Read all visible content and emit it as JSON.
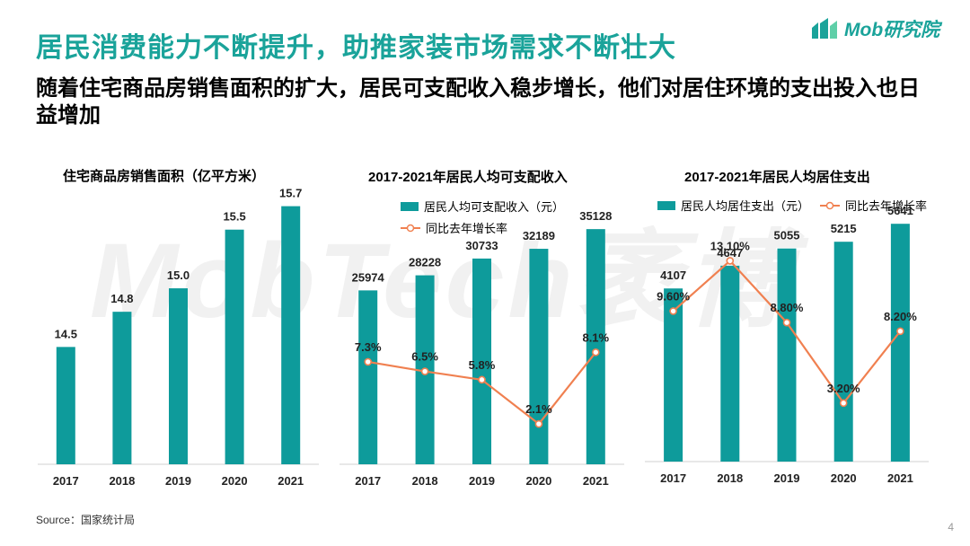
{
  "header": {
    "title": "居民消费能力不断提升，助推家装市场需求不断壮大",
    "subtitle": "随着住宅商品房销售面积的扩大，居民可支配收入稳步增长，他们对居住环境的支出投入也日益增加"
  },
  "logo": {
    "text": "Mob研究院"
  },
  "watermark": {
    "text": "MobTech袤博"
  },
  "footer": {
    "source": "Source：国家统计局",
    "page": "4"
  },
  "colors": {
    "accent": "#1aa39a",
    "bar": "#0e9b9b",
    "line": "#f08050"
  },
  "legend": {
    "income": "居民人均可支配收入（元）",
    "housing": "居民人均居住支出（元）",
    "growth": "同比去年增长率"
  },
  "chart_data": [
    {
      "type": "bar",
      "title": "住宅商品房销售面积（亿平方米）",
      "categories": [
        "2017",
        "2018",
        "2019",
        "2020",
        "2021"
      ],
      "values": [
        14.5,
        14.8,
        15.0,
        15.5,
        15.7
      ],
      "value_labels": [
        "14.5",
        "14.8",
        "15.0",
        "15.5",
        "15.7"
      ]
    },
    {
      "type": "bar+line",
      "title": "2017-2021年居民人均可支配收入",
      "categories": [
        "2017",
        "2018",
        "2019",
        "2020",
        "2021"
      ],
      "series": [
        {
          "name": "居民人均可支配收入（元）",
          "values": [
            25974,
            28228,
            30733,
            32189,
            35128
          ],
          "labels": [
            "25974",
            "28228",
            "30733",
            "32189",
            "35128"
          ]
        },
        {
          "name": "同比去年增长率",
          "values": [
            7.3,
            6.5,
            5.8,
            2.1,
            8.1
          ],
          "labels": [
            "7.3%",
            "6.5%",
            "5.8%",
            "2.1%",
            "8.1%"
          ]
        }
      ]
    },
    {
      "type": "bar+line",
      "title": "2017-2021年居民人均居住支出",
      "categories": [
        "2017",
        "2018",
        "2019",
        "2020",
        "2021"
      ],
      "series": [
        {
          "name": "居民人均居住支出（元）",
          "values": [
            4107,
            4647,
            5055,
            5215,
            5641
          ],
          "labels": [
            "4107",
            "4647",
            "5055",
            "5215",
            "5641"
          ]
        },
        {
          "name": "同比去年增长率",
          "values": [
            9.6,
            13.1,
            8.8,
            3.2,
            8.2
          ],
          "labels": [
            "9.60%",
            "13.10%",
            "8.80%",
            "3.20%",
            "8.20%"
          ]
        }
      ]
    }
  ]
}
